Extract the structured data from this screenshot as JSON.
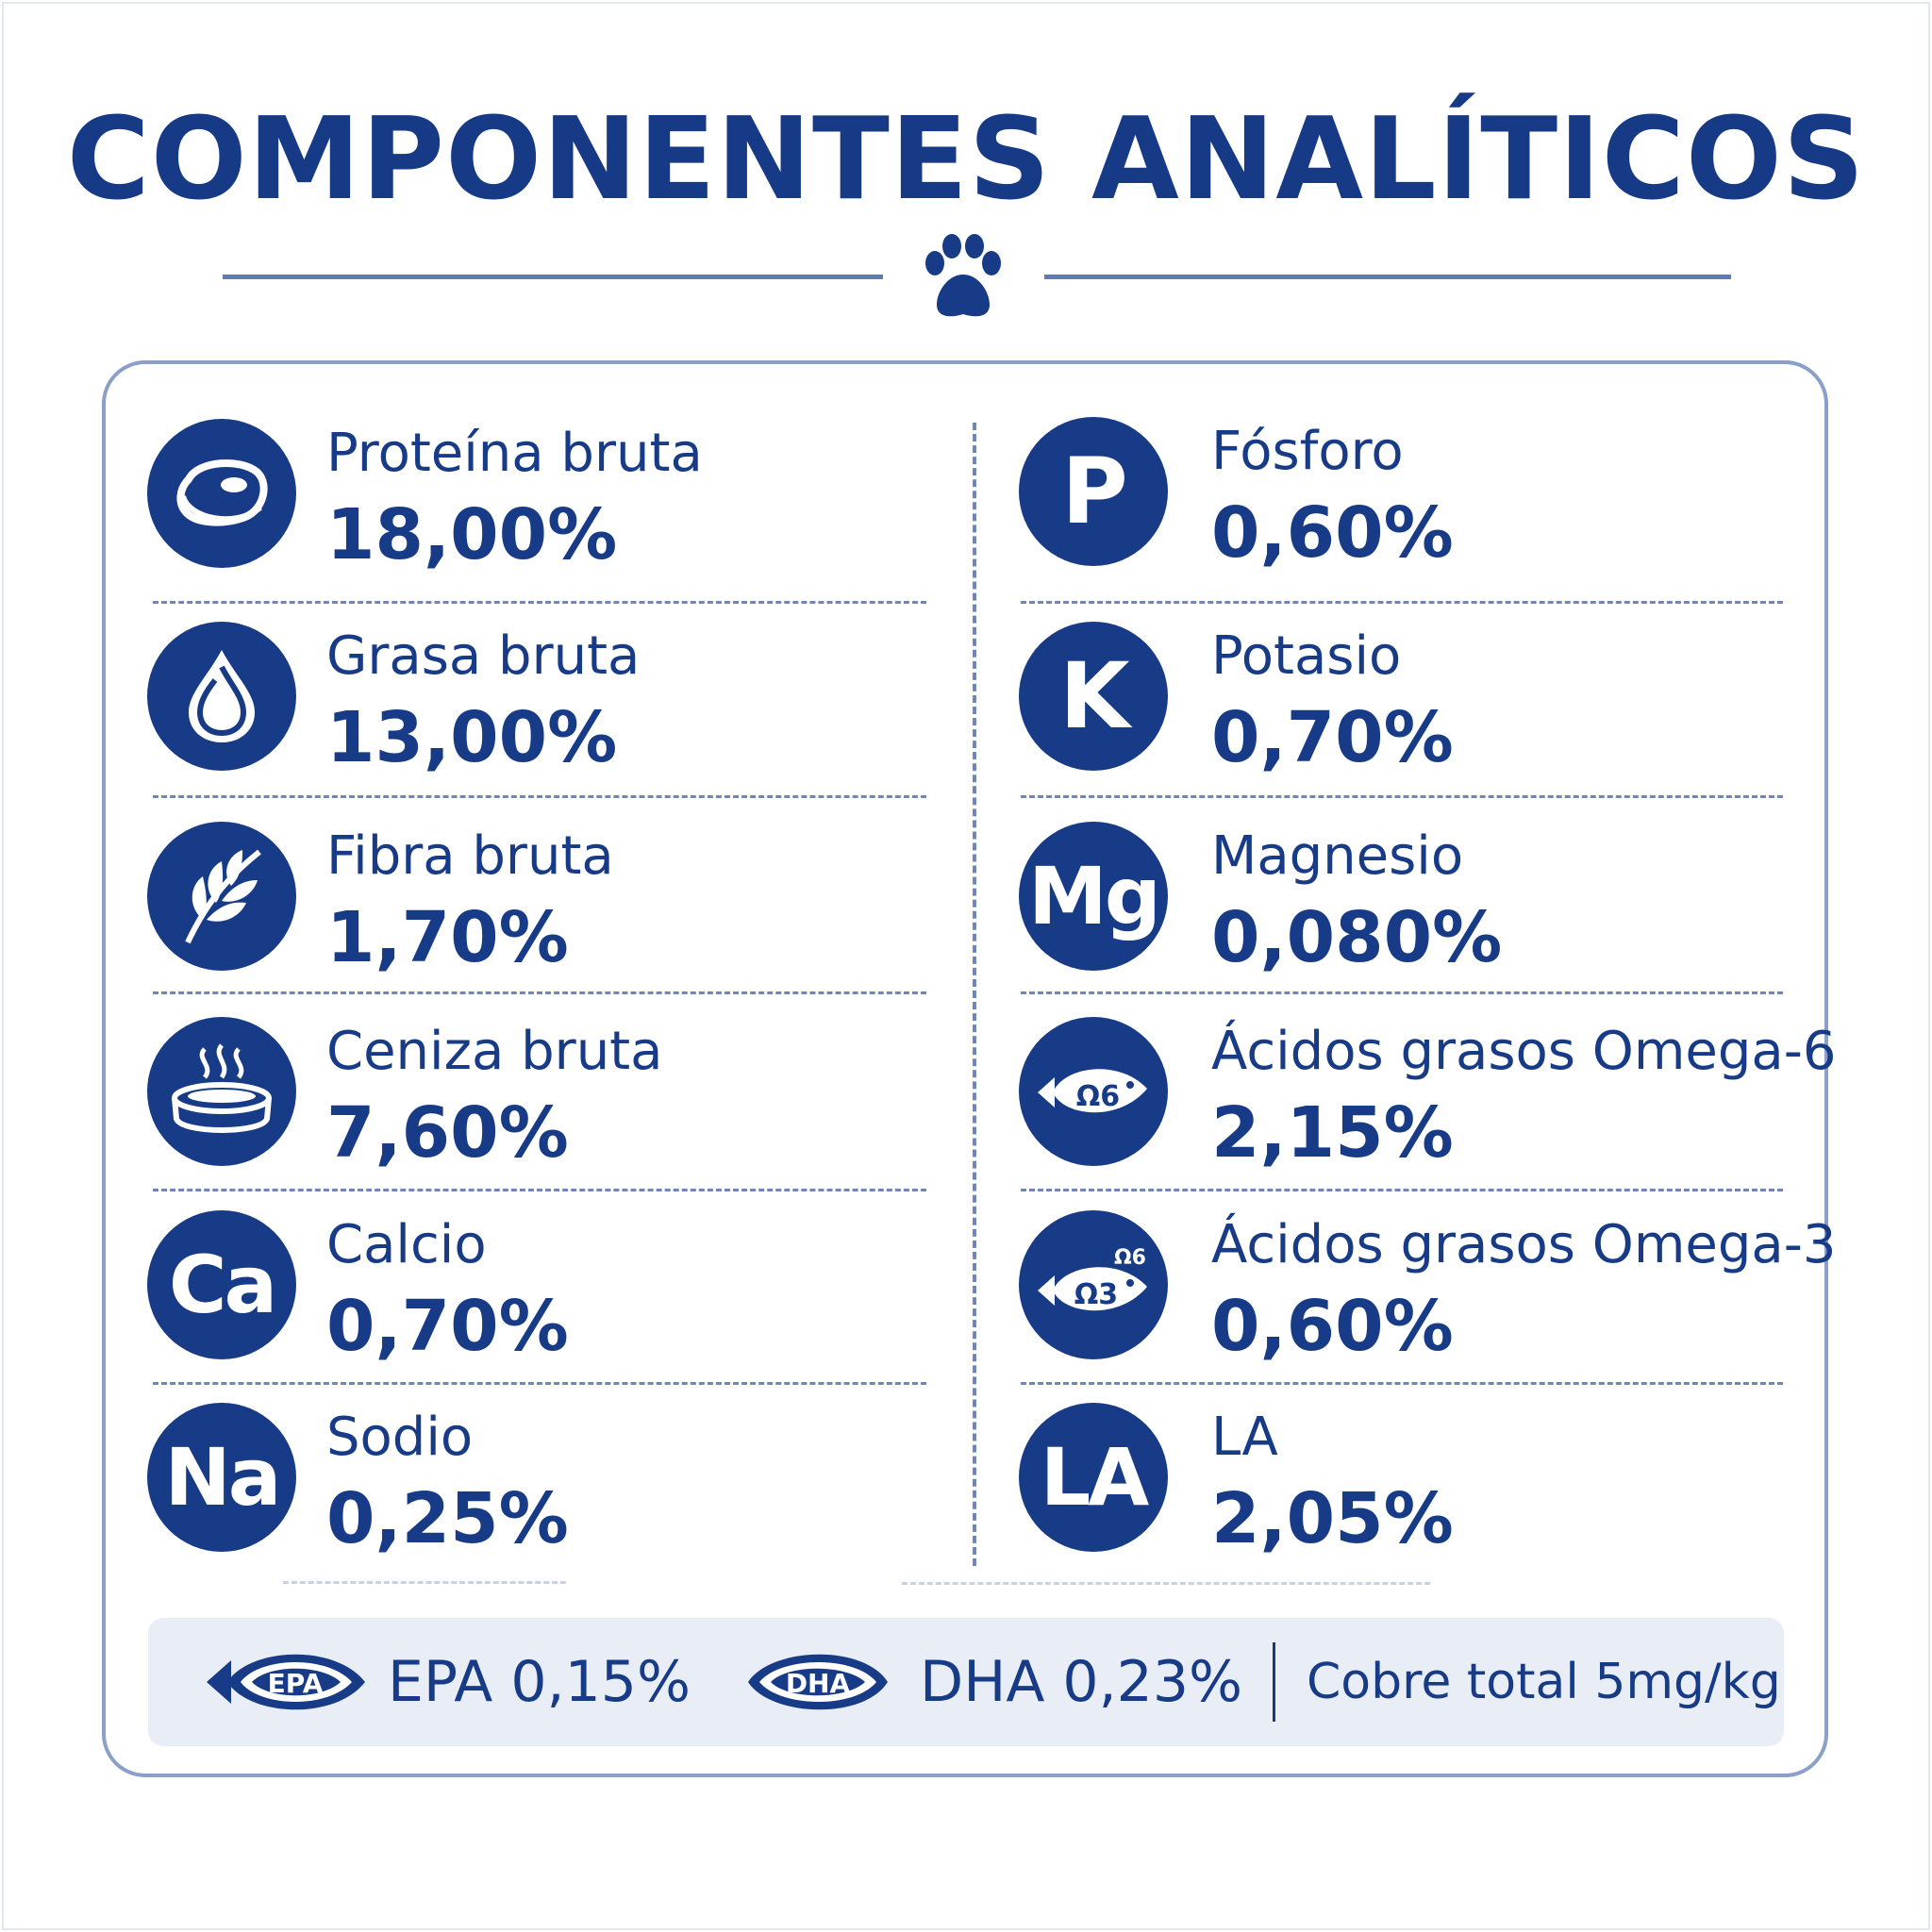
{
  "title": "COMPONENTES ANALÍTICOS",
  "colors": {
    "primary": "#173b86",
    "accent_line": "#5f7cb2",
    "footer_bg": "#e8edf6"
  },
  "header_icon": "paw-icon",
  "left_column": [
    {
      "icon": "meat-icon",
      "label": "Proteína bruta",
      "value": "18,00%"
    },
    {
      "icon": "drop-icon",
      "label": "Grasa bruta",
      "value": "13,00%"
    },
    {
      "icon": "leaf-icon",
      "label": "Fibra bruta",
      "value": "1,70%"
    },
    {
      "icon": "ash-bowl-icon",
      "label": "Ceniza bruta",
      "value": "7,60%"
    },
    {
      "icon": "calcium-icon",
      "symbol": "Ca",
      "label": "Calcio",
      "value": "0,70%"
    },
    {
      "icon": "sodium-icon",
      "symbol": "Na",
      "label": "Sodio",
      "value": "0,25%"
    }
  ],
  "right_column": [
    {
      "icon": "phosphorus-icon",
      "symbol": "P",
      "label": "Fósforo",
      "value": "0,60%"
    },
    {
      "icon": "potassium-icon",
      "symbol": "K",
      "label": "Potasio",
      "value": "0,70%"
    },
    {
      "icon": "magnesium-icon",
      "symbol": "Mg",
      "label": "Magnesio",
      "value": "0,080%"
    },
    {
      "icon": "fish-omega6-icon",
      "icon_text": "Ω6",
      "label": "Ácidos grasos Omega-6",
      "value": "2,15%"
    },
    {
      "icon": "fish-omega3-icon",
      "icon_text": "Ω3",
      "icon_text_small": "Ω6",
      "label": "Ácidos grasos Omega-3",
      "value": "0,60%"
    },
    {
      "icon": "la-icon",
      "symbol": "LA",
      "label": "LA",
      "value": "2,05%"
    }
  ],
  "footer": {
    "epa": {
      "icon": "fish-epa-icon",
      "badge": "EPA",
      "text": "EPA 0,15%"
    },
    "dha": {
      "icon": "fish-dha-icon",
      "badge": "DHA",
      "text": "DHA 0,23%"
    },
    "copper": {
      "text": "Cobre total 5mg/kg"
    }
  }
}
